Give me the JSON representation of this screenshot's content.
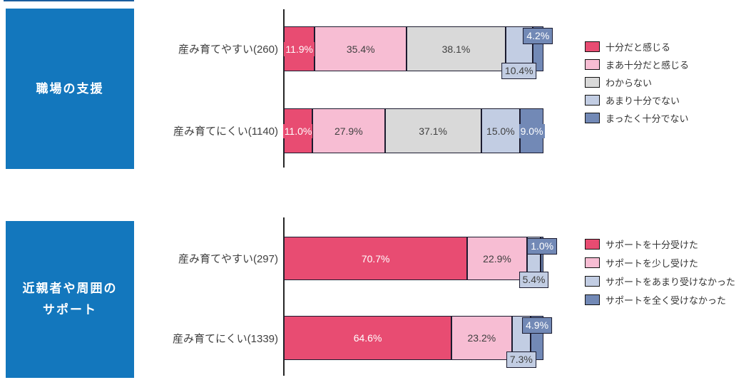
{
  "palette": {
    "rose": "#E84C72",
    "light_pink": "#F7BDD3",
    "gray": "#D9D9D9",
    "light_blue": "#C2CDE3",
    "blue": "#7289B6",
    "title_box": "#1377BD",
    "segment_border": "#1B1B2F",
    "axis": "#262626",
    "top_artifact": "#1A5E9E",
    "text_dark": "#404040",
    "text_light": "#FFFFFF"
  },
  "chart_data": [
    {
      "type": "bar",
      "variant": "horizontal-stacked",
      "unit": "%",
      "xlim": [
        0,
        100
      ],
      "section_title_lines": [
        "職場の支援"
      ],
      "categories": [
        "産み育てやすい(260)",
        "産み育てにくい(1140)"
      ],
      "legend": [
        {
          "label": "十分だと感じる",
          "color": "rose"
        },
        {
          "label": "まあ十分だと感じる",
          "color": "light_pink"
        },
        {
          "label": "わからない",
          "color": "gray"
        },
        {
          "label": "あまり十分でない",
          "color": "light_blue"
        },
        {
          "label": "まったく十分でない",
          "color": "blue"
        }
      ],
      "rows": [
        {
          "label": "産み育てやすい(260)",
          "segments": [
            {
              "value": 11.9,
              "label": "11.9%",
              "color": "rose",
              "text": "light",
              "placement": "inside"
            },
            {
              "value": 35.4,
              "label": "35.4%",
              "color": "light_pink",
              "text": "dark",
              "placement": "inside"
            },
            {
              "value": 38.1,
              "label": "38.1%",
              "color": "gray",
              "text": "dark",
              "placement": "inside"
            },
            {
              "value": 10.4,
              "label": "10.4%",
              "color": "light_blue",
              "text": "dark",
              "placement": "below"
            },
            {
              "value": 4.2,
              "label": "4.2%",
              "color": "blue",
              "text": "light",
              "placement": "above"
            }
          ]
        },
        {
          "label": "産み育てにくい(1140)",
          "segments": [
            {
              "value": 11.0,
              "label": "11.0%",
              "color": "rose",
              "text": "light",
              "placement": "inside"
            },
            {
              "value": 27.9,
              "label": "27.9%",
              "color": "light_pink",
              "text": "dark",
              "placement": "inside"
            },
            {
              "value": 37.1,
              "label": "37.1%",
              "color": "gray",
              "text": "dark",
              "placement": "inside"
            },
            {
              "value": 15.0,
              "label": "15.0%",
              "color": "light_blue",
              "text": "dark",
              "placement": "inside"
            },
            {
              "value": 9.0,
              "label": "9.0%",
              "color": "blue",
              "text": "light",
              "placement": "inside"
            }
          ]
        }
      ]
    },
    {
      "type": "bar",
      "variant": "horizontal-stacked",
      "unit": "%",
      "xlim": [
        0,
        100
      ],
      "section_title_lines": [
        "近親者や周囲の",
        "サポート"
      ],
      "categories": [
        "産み育てやすい(297)",
        "産み育てにくい(1339)"
      ],
      "legend": [
        {
          "label": "サポートを十分受けた",
          "color": "rose"
        },
        {
          "label": "サポートを少し受けた",
          "color": "light_pink"
        },
        {
          "label": "サポートをあまり受けなかった",
          "color": "light_blue"
        },
        {
          "label": "サポートを全く受けなかった",
          "color": "blue"
        }
      ],
      "rows": [
        {
          "label": "産み育てやすい(297)",
          "segments": [
            {
              "value": 70.7,
              "label": "70.7%",
              "color": "rose",
              "text": "light",
              "placement": "inside"
            },
            {
              "value": 22.9,
              "label": "22.9%",
              "color": "light_pink",
              "text": "dark",
              "placement": "inside"
            },
            {
              "value": 5.4,
              "label": "5.4%",
              "color": "light_blue",
              "text": "dark",
              "placement": "below"
            },
            {
              "value": 1.0,
              "label": "1.0%",
              "color": "blue",
              "text": "light",
              "placement": "above"
            }
          ]
        },
        {
          "label": "産み育てにくい(1339)",
          "segments": [
            {
              "value": 64.6,
              "label": "64.6%",
              "color": "rose",
              "text": "light",
              "placement": "inside"
            },
            {
              "value": 23.2,
              "label": "23.2%",
              "color": "light_pink",
              "text": "dark",
              "placement": "inside"
            },
            {
              "value": 7.3,
              "label": "7.3%",
              "color": "light_blue",
              "text": "dark",
              "placement": "below"
            },
            {
              "value": 4.9,
              "label": "4.9%",
              "color": "blue",
              "text": "light",
              "placement": "above"
            }
          ]
        }
      ]
    }
  ]
}
